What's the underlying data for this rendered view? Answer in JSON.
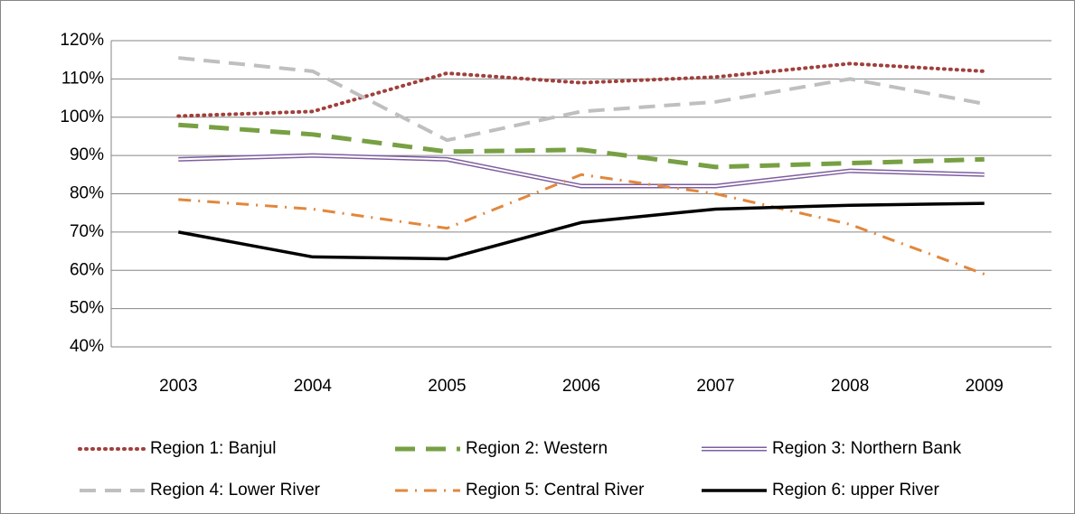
{
  "chart_data": {
    "type": "line",
    "categories": [
      "2003",
      "2004",
      "2005",
      "2006",
      "2007",
      "2008",
      "2009"
    ],
    "ylim": [
      40,
      120
    ],
    "yticks": [
      {
        "value": 40,
        "label": "40%"
      },
      {
        "value": 50,
        "label": "50%"
      },
      {
        "value": 60,
        "label": "60%"
      },
      {
        "value": 70,
        "label": "70%"
      },
      {
        "value": 80,
        "label": "80%"
      },
      {
        "value": 90,
        "label": "90%"
      },
      {
        "value": 100,
        "label": "100%"
      },
      {
        "value": 110,
        "label": "110%"
      },
      {
        "value": 120,
        "label": "120%"
      }
    ],
    "grid": true,
    "legend": "bottom",
    "series": [
      {
        "name": "Region 1: Banjul",
        "color": "#a0403c",
        "style": "dotted",
        "values": [
          100.3,
          101.5,
          111.5,
          109,
          110.5,
          114,
          112
        ]
      },
      {
        "name": "Region 2: Western",
        "color": "#77a043",
        "style": "dashed-thick",
        "values": [
          98,
          95.5,
          91,
          91.5,
          87,
          88,
          89
        ]
      },
      {
        "name": "Region 3: Northern Bank",
        "color": "#7e5ea0",
        "style": "double",
        "values": [
          89,
          90,
          89,
          82,
          82,
          86,
          85
        ]
      },
      {
        "name": "Region 4: Lower River",
        "color": "#bfbfbf",
        "style": "dashed",
        "values": [
          115.5,
          112,
          94,
          101.5,
          104,
          110,
          103.5
        ]
      },
      {
        "name": "Region 5: Central River",
        "color": "#e2873c",
        "style": "dash-dot",
        "values": [
          78.5,
          76,
          71,
          85,
          80,
          72,
          59
        ]
      },
      {
        "name": "Region 6: upper River",
        "color": "#000000",
        "style": "solid",
        "values": [
          70,
          63.5,
          63,
          72.5,
          76,
          77,
          77.5
        ]
      }
    ]
  }
}
